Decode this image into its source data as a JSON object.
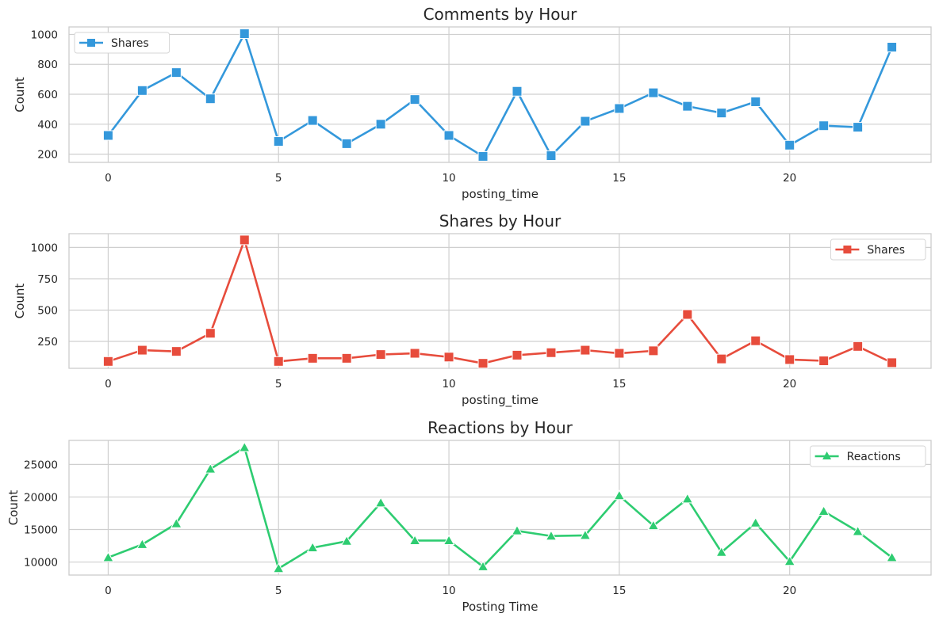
{
  "chart_data": [
    {
      "type": "line",
      "title": "Comments by Hour",
      "xlabel": "posting_time",
      "ylabel": "Count",
      "xlim": [
        -1.15,
        24.15
      ],
      "ylim": [
        145,
        1050
      ],
      "xticks": [
        0,
        5,
        10,
        15,
        20
      ],
      "yticks": [
        200,
        400,
        600,
        800,
        1000
      ],
      "grid": true,
      "legend_position": "top-left",
      "series": [
        {
          "name": "Shares",
          "color": "#3498db",
          "marker": "square",
          "x": [
            0,
            1,
            2,
            3,
            4,
            5,
            6,
            7,
            8,
            9,
            10,
            11,
            12,
            13,
            14,
            15,
            16,
            17,
            18,
            19,
            20,
            21,
            22,
            23
          ],
          "values": [
            325,
            625,
            745,
            570,
            1005,
            285,
            425,
            270,
            400,
            565,
            325,
            185,
            620,
            190,
            420,
            505,
            610,
            520,
            475,
            550,
            260,
            390,
            380,
            915
          ]
        }
      ]
    },
    {
      "type": "line",
      "title": "Shares by Hour",
      "xlabel": "posting_time",
      "ylabel": "Count",
      "xlim": [
        -1.15,
        24.15
      ],
      "ylim": [
        35,
        1110
      ],
      "xticks": [
        0,
        5,
        10,
        15,
        20
      ],
      "yticks": [
        250,
        500,
        750,
        1000
      ],
      "grid": true,
      "legend_position": "top-right",
      "series": [
        {
          "name": "Shares",
          "color": "#e74c3c",
          "marker": "square",
          "x": [
            0,
            1,
            2,
            3,
            4,
            5,
            6,
            7,
            8,
            9,
            10,
            11,
            12,
            13,
            14,
            15,
            16,
            17,
            18,
            19,
            20,
            21,
            22,
            23
          ],
          "values": [
            90,
            180,
            170,
            315,
            1060,
            90,
            115,
            115,
            145,
            155,
            125,
            75,
            140,
            160,
            180,
            155,
            175,
            465,
            110,
            255,
            105,
            95,
            210,
            80
          ]
        }
      ]
    },
    {
      "type": "line",
      "title": "Reactions by Hour",
      "xlabel": "Posting Time",
      "ylabel": "Count",
      "xlim": [
        -1.15,
        24.15
      ],
      "ylim": [
        8000,
        28700
      ],
      "xticks": [
        0,
        5,
        10,
        15,
        20
      ],
      "yticks": [
        10000,
        15000,
        20000,
        25000
      ],
      "grid": true,
      "legend_position": "top-right",
      "series": [
        {
          "name": "Reactions",
          "color": "#2ecc71",
          "marker": "triangle",
          "x": [
            0,
            1,
            2,
            3,
            4,
            5,
            6,
            7,
            8,
            9,
            10,
            11,
            12,
            13,
            14,
            15,
            16,
            17,
            18,
            19,
            20,
            21,
            22,
            23
          ],
          "values": [
            10700,
            12700,
            15900,
            24300,
            27600,
            9000,
            12200,
            13200,
            19100,
            13300,
            13300,
            9300,
            14800,
            14000,
            14100,
            20200,
            15600,
            19700,
            11500,
            16000,
            10100,
            17800,
            14700,
            10700
          ]
        }
      ]
    }
  ]
}
